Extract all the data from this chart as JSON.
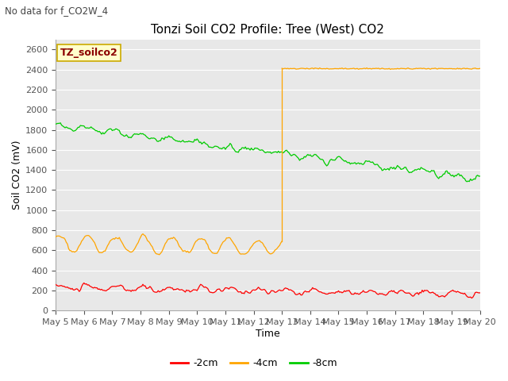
{
  "title": "Tonzi Soil CO2 Profile: Tree (West) CO2",
  "subtitle": "No data for f_CO2W_4",
  "xlabel": "Time",
  "ylabel": "Soil CO2 (mV)",
  "ylim": [
    0,
    2700
  ],
  "yticks": [
    0,
    200,
    400,
    600,
    800,
    1000,
    1200,
    1400,
    1600,
    1800,
    2000,
    2200,
    2400,
    2600
  ],
  "xtick_labels": [
    "May 5",
    "May 6",
    "May 7",
    "May 8",
    "May 9",
    "May 10",
    "May 11",
    "May 12",
    "May 13",
    "May 14",
    "May 15",
    "May 16",
    "May 17",
    "May 18",
    "May 19",
    "May 20"
  ],
  "legend_label": "TZ_soilco2",
  "series_labels": [
    "-2cm",
    "-4cm",
    "-8cm"
  ],
  "series_colors": [
    "#ff0000",
    "#ffa500",
    "#00cc00"
  ],
  "fig_bg_color": "#ffffff",
  "plot_bg_color": "#e8e8e8",
  "grid_color": "#ffffff",
  "title_fontsize": 11,
  "axis_label_fontsize": 9,
  "tick_fontsize": 8,
  "n_days": 15,
  "n_per_day": 24,
  "jump_day": 8
}
